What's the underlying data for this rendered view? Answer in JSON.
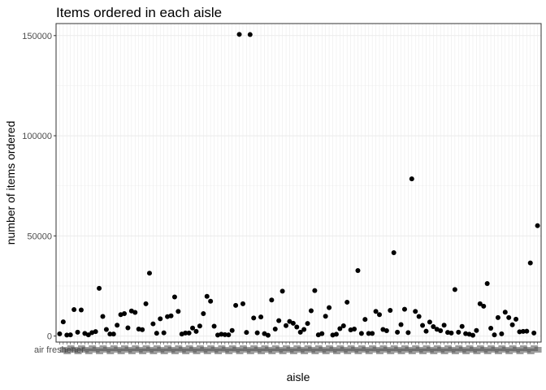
{
  "chart_data": {
    "type": "scatter",
    "title": "Items ordered in each aisle",
    "xlabel": "aisle",
    "ylabel": "number of items ordered",
    "x_first_tick_label": "air freshener",
    "ylim": [
      -3000,
      156000
    ],
    "yticks": [
      0,
      50000,
      100000,
      150000
    ],
    "grid": true,
    "legend": "none",
    "point_color": "#000000",
    "categories_count": 134,
    "values": [
      1100,
      7100,
      500,
      600,
      13200,
      1900,
      13000,
      1300,
      600,
      1700,
      2200,
      23800,
      9800,
      3300,
      1000,
      1000,
      5400,
      10700,
      11200,
      4100,
      12500,
      11800,
      3500,
      3200,
      16100,
      31400,
      6100,
      1400,
      8600,
      1600,
      9700,
      10100,
      19500,
      12300,
      1000,
      1500,
      1500,
      4000,
      2300,
      5000,
      11200,
      19800,
      17400,
      4900,
      500,
      900,
      700,
      600,
      2800,
      15300,
      150600,
      16100,
      1800,
      150500,
      9000,
      1600,
      9500,
      1200,
      400,
      18000,
      3500,
      7700,
      22400,
      5200,
      7300,
      6400,
      4500,
      1900,
      3300,
      6300,
      12600,
      22700,
      600,
      1200,
      9900,
      14200,
      500,
      900,
      3700,
      5100,
      16900,
      3100,
      3500,
      32700,
      1300,
      8300,
      1300,
      1300,
      12300,
      10700,
      3300,
      2700,
      12800,
      41600,
      1900,
      5700,
      13400,
      1700,
      78500,
      12300,
      9800,
      5300,
      2400,
      7000,
      4700,
      3400,
      2700,
      5400,
      1800,
      1500,
      23200,
      1900,
      4800,
      1200,
      900,
      400,
      2800,
      16100,
      14900,
      26200,
      3900,
      600,
      9200,
      1100,
      11900,
      9200,
      5600,
      8400,
      2100,
      2300,
      2400,
      36500,
      1500,
      55100
    ]
  }
}
